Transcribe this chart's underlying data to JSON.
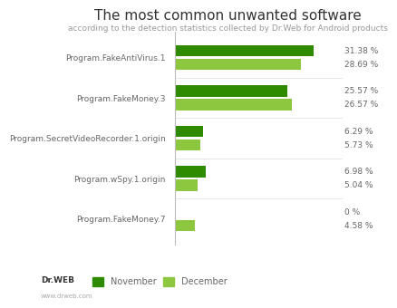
{
  "title": "The most common unwanted software",
  "subtitle": "according to the detection statistics collected by Dr.Web for Android products",
  "categories": [
    "Program.FakeAntiVirus.1",
    "Program.FakeMoney.3",
    "Program.SecretVideoRecorder.1.origin",
    "Program.wSpy.1.origin",
    "Program.FakeMoney.7"
  ],
  "november_values": [
    31.38,
    25.57,
    6.29,
    6.98,
    0.0
  ],
  "december_values": [
    28.69,
    26.57,
    5.73,
    5.04,
    4.58
  ],
  "november_labels": [
    "31.38 %",
    "25.57 %",
    "6.29 %",
    "6.98 %",
    "0 %"
  ],
  "december_labels": [
    "28.69 %",
    "26.57 %",
    "5.73 %",
    "5.04 %",
    "4.58 %"
  ],
  "november_color": "#2e8b00",
  "december_color": "#8dc63f",
  "background_color": "#ffffff",
  "title_fontsize": 11,
  "subtitle_fontsize": 6.5,
  "label_fontsize": 6.5,
  "value_fontsize": 6.5,
  "legend_november": "November",
  "legend_december": "December",
  "xlim_max": 38,
  "bar_height": 0.28,
  "bar_gap": 0.06
}
